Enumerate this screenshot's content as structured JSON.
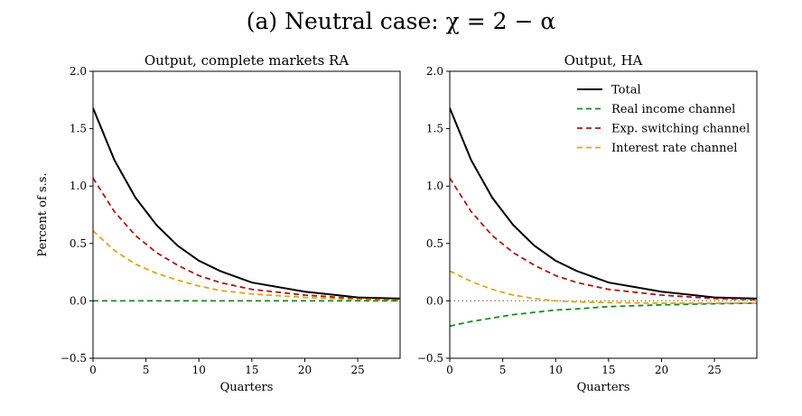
{
  "figure": {
    "title": "(a) Neutral case: χ = 2 − α"
  },
  "legend_placement": "top-right of right panel",
  "colors": {
    "Total": "#000000",
    "Real income channel": "#1a8a1a",
    "Exp. switching channel": "#b01515",
    "Interest rate channel": "#e0a418",
    "zero_line_ha": "#808080"
  },
  "chart_data": [
    {
      "type": "line",
      "title": "Output, complete markets RA",
      "xlabel": "Quarters",
      "ylabel": "Percent of s.s.",
      "xlim": [
        0,
        29
      ],
      "ylim": [
        -0.5,
        2.0
      ],
      "xticks": [
        0,
        5,
        10,
        15,
        20,
        25
      ],
      "yticks": [
        -0.5,
        0.0,
        0.5,
        1.0,
        1.5,
        2.0
      ],
      "ytick_labels": [
        "−0.5",
        "0.0",
        "0.5",
        "1.0",
        "1.5",
        "2.0"
      ],
      "grid": false,
      "series": [
        {
          "name": "Total",
          "style": "solid",
          "color": "#000000",
          "x": [
            0,
            2,
            4,
            6,
            8,
            10,
            12,
            15,
            20,
            25,
            29
          ],
          "y": [
            1.68,
            1.23,
            0.9,
            0.66,
            0.48,
            0.35,
            0.26,
            0.16,
            0.08,
            0.03,
            0.02
          ]
        },
        {
          "name": "Exp. switching channel",
          "style": "dashed",
          "color": "#b01515",
          "x": [
            0,
            2,
            4,
            6,
            8,
            10,
            12,
            15,
            20,
            25,
            29
          ],
          "y": [
            1.07,
            0.78,
            0.57,
            0.42,
            0.31,
            0.22,
            0.16,
            0.1,
            0.05,
            0.02,
            0.01
          ]
        },
        {
          "name": "Interest rate channel",
          "style": "dashed",
          "color": "#e0a418",
          "x": [
            0,
            2,
            4,
            6,
            8,
            10,
            12,
            15,
            20,
            25,
            29
          ],
          "y": [
            0.61,
            0.44,
            0.32,
            0.24,
            0.18,
            0.13,
            0.09,
            0.06,
            0.03,
            0.01,
            0.0
          ]
        },
        {
          "name": "Real income channel",
          "style": "dashed",
          "color": "#1a8a1a",
          "x": [
            0,
            5,
            10,
            15,
            20,
            25,
            29
          ],
          "y": [
            0.0,
            0.0,
            0.0,
            0.0,
            0.0,
            0.0,
            0.0
          ]
        }
      ]
    },
    {
      "type": "line",
      "title": "Output, HA",
      "xlabel": "Quarters",
      "ylabel": "",
      "xlim": [
        0,
        29
      ],
      "ylim": [
        -0.5,
        2.0
      ],
      "xticks": [
        0,
        5,
        10,
        15,
        20,
        25
      ],
      "yticks": [
        -0.5,
        0.0,
        0.5,
        1.0,
        1.5,
        2.0
      ],
      "ytick_labels": [
        "−0.5",
        "0.0",
        "0.5",
        "1.0",
        "1.5",
        "2.0"
      ],
      "grid": false,
      "zero_line": "dotted",
      "series": [
        {
          "name": "Total",
          "style": "solid",
          "color": "#000000",
          "x": [
            0,
            2,
            4,
            6,
            8,
            10,
            12,
            15,
            20,
            25,
            29
          ],
          "y": [
            1.68,
            1.23,
            0.9,
            0.66,
            0.48,
            0.35,
            0.26,
            0.16,
            0.08,
            0.03,
            0.02
          ]
        },
        {
          "name": "Real income channel",
          "style": "dashed",
          "color": "#1a8a1a",
          "x": [
            0,
            2,
            4,
            6,
            8,
            10,
            12,
            15,
            20,
            25,
            29
          ],
          "y": [
            -0.22,
            -0.18,
            -0.15,
            -0.12,
            -0.1,
            -0.08,
            -0.07,
            -0.05,
            -0.035,
            -0.025,
            -0.02
          ]
        },
        {
          "name": "Exp. switching channel",
          "style": "dashed",
          "color": "#b01515",
          "x": [
            0,
            2,
            4,
            6,
            8,
            10,
            12,
            15,
            20,
            25,
            29
          ],
          "y": [
            1.07,
            0.78,
            0.57,
            0.42,
            0.31,
            0.22,
            0.16,
            0.1,
            0.05,
            0.02,
            0.01
          ]
        },
        {
          "name": "Interest rate channel",
          "style": "dashed",
          "color": "#e0a418",
          "x": [
            0,
            2,
            4,
            6,
            8,
            10,
            12,
            15,
            20,
            25,
            29
          ],
          "y": [
            0.26,
            0.17,
            0.1,
            0.05,
            0.02,
            0.0,
            -0.01,
            -0.015,
            -0.02,
            -0.02,
            -0.02
          ]
        }
      ],
      "legend": [
        "Total",
        "Real income channel",
        "Exp. switching channel",
        "Interest rate channel"
      ]
    }
  ]
}
